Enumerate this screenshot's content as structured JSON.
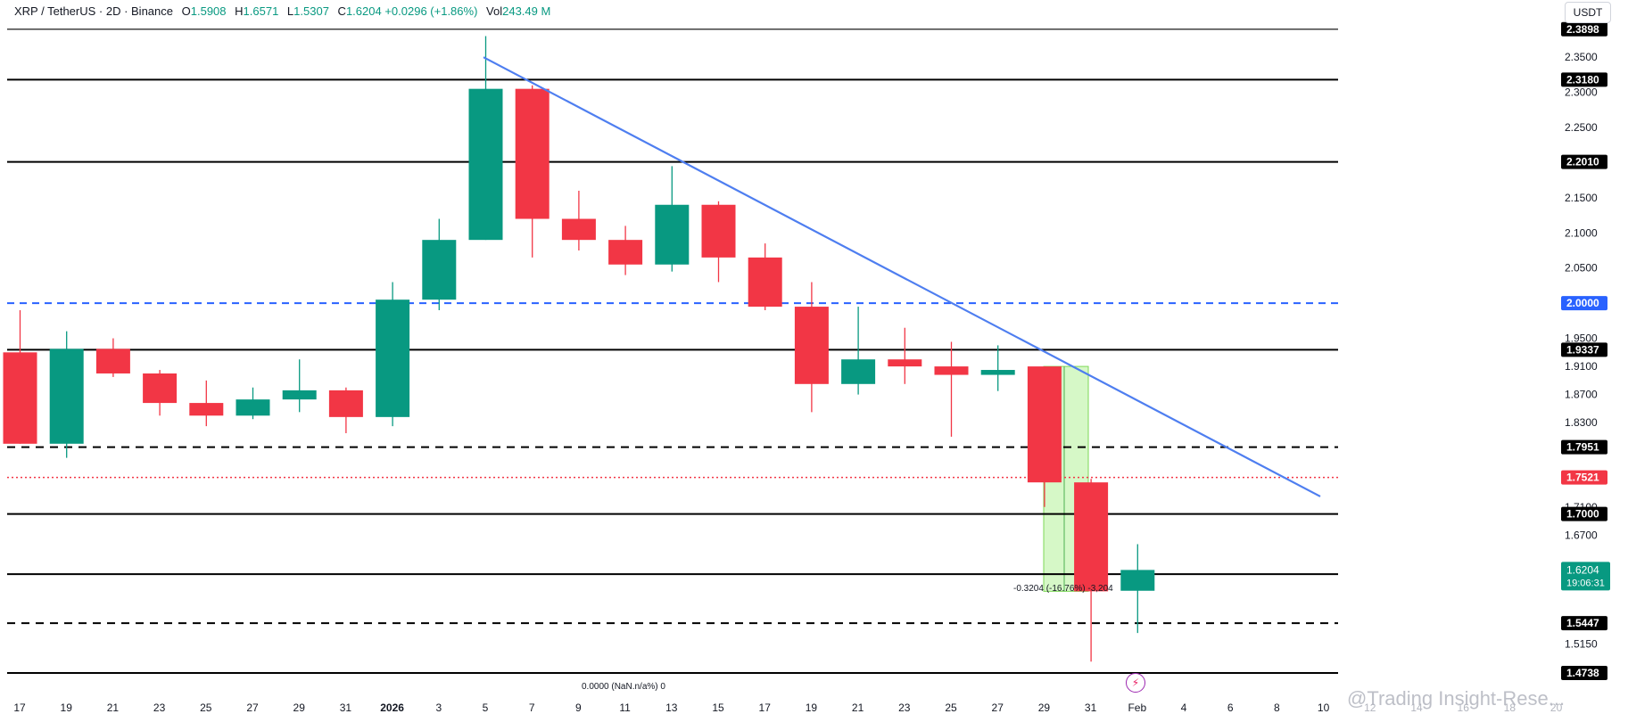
{
  "legend": {
    "symbol": "XRP / TetherUS · 2D · Binance",
    "o_label": "O",
    "o": "1.5908",
    "h_label": "H",
    "h": "1.6571",
    "l_label": "L",
    "l": "1.5307",
    "c_label": "C",
    "c": "1.6204",
    "chg": "+0.0296 (+1.86%)",
    "vol_label": "Vol",
    "vol": "243.49 M"
  },
  "currency_button": "USDT",
  "watermark": "@Trading Insight-Rese...",
  "alert_icon": "flash-icon",
  "colors": {
    "up": "#089981",
    "down": "#f23645",
    "trendline": "#4e7ef0",
    "level": "#000000",
    "dashed_blue": "#2962ff",
    "dotted_red": "#f23645",
    "range_fill": "#c8f5b4"
  },
  "chart_data": {
    "type": "candlestick",
    "symbol": "XRP / TetherUS",
    "timeframe": "2D",
    "exchange": "Binance",
    "ylim": [
      1.445,
      2.39
    ],
    "x_tick_labels": [
      "17",
      "19",
      "21",
      "23",
      "25",
      "27",
      "29",
      "31",
      "2026",
      "3",
      "5",
      "7",
      "9",
      "11",
      "13",
      "15",
      "17",
      "19",
      "21",
      "23",
      "25",
      "27",
      "29",
      "31",
      "Feb",
      "4",
      "6",
      "8",
      "10",
      "12",
      "14",
      "16",
      "18",
      "20"
    ],
    "y_tick_labels": [
      {
        "value": 2.35,
        "label": "2.3500"
      },
      {
        "value": 2.3,
        "label": "2.3000"
      },
      {
        "value": 2.25,
        "label": "2.2500"
      },
      {
        "value": 2.15,
        "label": "2.1500"
      },
      {
        "value": 2.1,
        "label": "2.1000"
      },
      {
        "value": 2.05,
        "label": "2.0500"
      },
      {
        "value": 1.95,
        "label": "1.9500"
      },
      {
        "value": 1.91,
        "label": "1.9100"
      },
      {
        "value": 1.87,
        "label": "1.8700"
      },
      {
        "value": 1.83,
        "label": "1.8300"
      },
      {
        "value": 1.71,
        "label": "1.7100"
      },
      {
        "value": 1.67,
        "label": "1.6700"
      },
      {
        "value": 1.515,
        "label": "1.5150"
      }
    ],
    "candles": [
      {
        "x": "15",
        "o": 1.93,
        "h": 1.99,
        "l": 1.8,
        "c": 1.8
      },
      {
        "x": "17",
        "o": 1.8,
        "h": 1.96,
        "l": 1.78,
        "c": 1.935
      },
      {
        "x": "19",
        "o": 1.935,
        "h": 1.95,
        "l": 1.895,
        "c": 1.9
      },
      {
        "x": "21",
        "o": 1.9,
        "h": 1.905,
        "l": 1.84,
        "c": 1.858
      },
      {
        "x": "23",
        "o": 1.858,
        "h": 1.89,
        "l": 1.825,
        "c": 1.84
      },
      {
        "x": "25",
        "o": 1.84,
        "h": 1.88,
        "l": 1.835,
        "c": 1.863
      },
      {
        "x": "27",
        "o": 1.863,
        "h": 1.92,
        "l": 1.845,
        "c": 1.876
      },
      {
        "x": "29",
        "o": 1.876,
        "h": 1.88,
        "l": 1.815,
        "c": 1.838
      },
      {
        "x": "31",
        "o": 1.838,
        "h": 2.03,
        "l": 1.825,
        "c": 2.005
      },
      {
        "x": "2026",
        "o": 2.005,
        "h": 2.12,
        "l": 1.99,
        "c": 2.09
      },
      {
        "x": "3",
        "o": 2.09,
        "h": 2.38,
        "l": 2.09,
        "c": 2.305
      },
      {
        "x": "5",
        "o": 2.305,
        "h": 2.31,
        "l": 2.065,
        "c": 2.12
      },
      {
        "x": "7",
        "o": 2.12,
        "h": 2.16,
        "l": 2.075,
        "c": 2.09
      },
      {
        "x": "9",
        "o": 2.09,
        "h": 2.11,
        "l": 2.04,
        "c": 2.055
      },
      {
        "x": "11",
        "o": 2.055,
        "h": 2.195,
        "l": 2.045,
        "c": 2.14
      },
      {
        "x": "13",
        "o": 2.14,
        "h": 2.145,
        "l": 2.03,
        "c": 2.065
      },
      {
        "x": "15",
        "o": 2.065,
        "h": 2.085,
        "l": 1.99,
        "c": 1.995
      },
      {
        "x": "17",
        "o": 1.995,
        "h": 2.03,
        "l": 1.845,
        "c": 1.885
      },
      {
        "x": "19",
        "o": 1.885,
        "h": 1.995,
        "l": 1.87,
        "c": 1.92
      },
      {
        "x": "21",
        "o": 1.92,
        "h": 1.965,
        "l": 1.885,
        "c": 1.91
      },
      {
        "x": "23",
        "o": 1.91,
        "h": 1.945,
        "l": 1.81,
        "c": 1.898
      },
      {
        "x": "25",
        "o": 1.898,
        "h": 1.94,
        "l": 1.875,
        "c": 1.905
      },
      {
        "x": "27",
        "o": 1.91,
        "h": 1.91,
        "l": 1.71,
        "c": 1.745
      },
      {
        "x": "29",
        "o": 1.745,
        "h": 1.75,
        "l": 1.49,
        "c": 1.59
      },
      {
        "x": "31",
        "o": 1.5908,
        "h": 1.6571,
        "l": 1.5307,
        "c": 1.6204
      }
    ],
    "horizontal_levels": [
      {
        "value": 2.3898,
        "label": "2.3898",
        "style": "solid-thin"
      },
      {
        "value": 2.318,
        "label": "2.3180",
        "style": "solid"
      },
      {
        "value": 2.201,
        "label": "2.2010",
        "style": "solid"
      },
      {
        "value": 2.0,
        "label": "2.0000",
        "style": "dashed-blue"
      },
      {
        "value": 1.9337,
        "label": "1.9337",
        "style": "solid"
      },
      {
        "value": 1.7951,
        "label": "1.7951",
        "style": "dashed"
      },
      {
        "value": 1.7521,
        "label": "1.7521",
        "style": "dotted-red"
      },
      {
        "value": 1.7,
        "label": "1.7000",
        "style": "solid"
      },
      {
        "value": 1.6144,
        "label": "1.6144",
        "style": "solid"
      },
      {
        "value": 1.5447,
        "label": "1.5447",
        "style": "dashed"
      },
      {
        "value": 1.4738,
        "label": "1.4738",
        "style": "solid"
      }
    ],
    "last_price": {
      "value": 1.6204,
      "label": "1.6204",
      "countdown": "19:06:31"
    },
    "trendline": {
      "from": {
        "x": "5",
        "y": 2.35
      },
      "to": {
        "x": "10",
        "y": 1.725
      }
    },
    "range_measure": {
      "label": "-0.3204 (-16.76%) -3,204",
      "top": 1.91,
      "bottom": 1.59,
      "x_from": "29",
      "x_to": "31"
    },
    "bottom_measure_label": "0.0000 (NaN.n/a%) 0"
  }
}
